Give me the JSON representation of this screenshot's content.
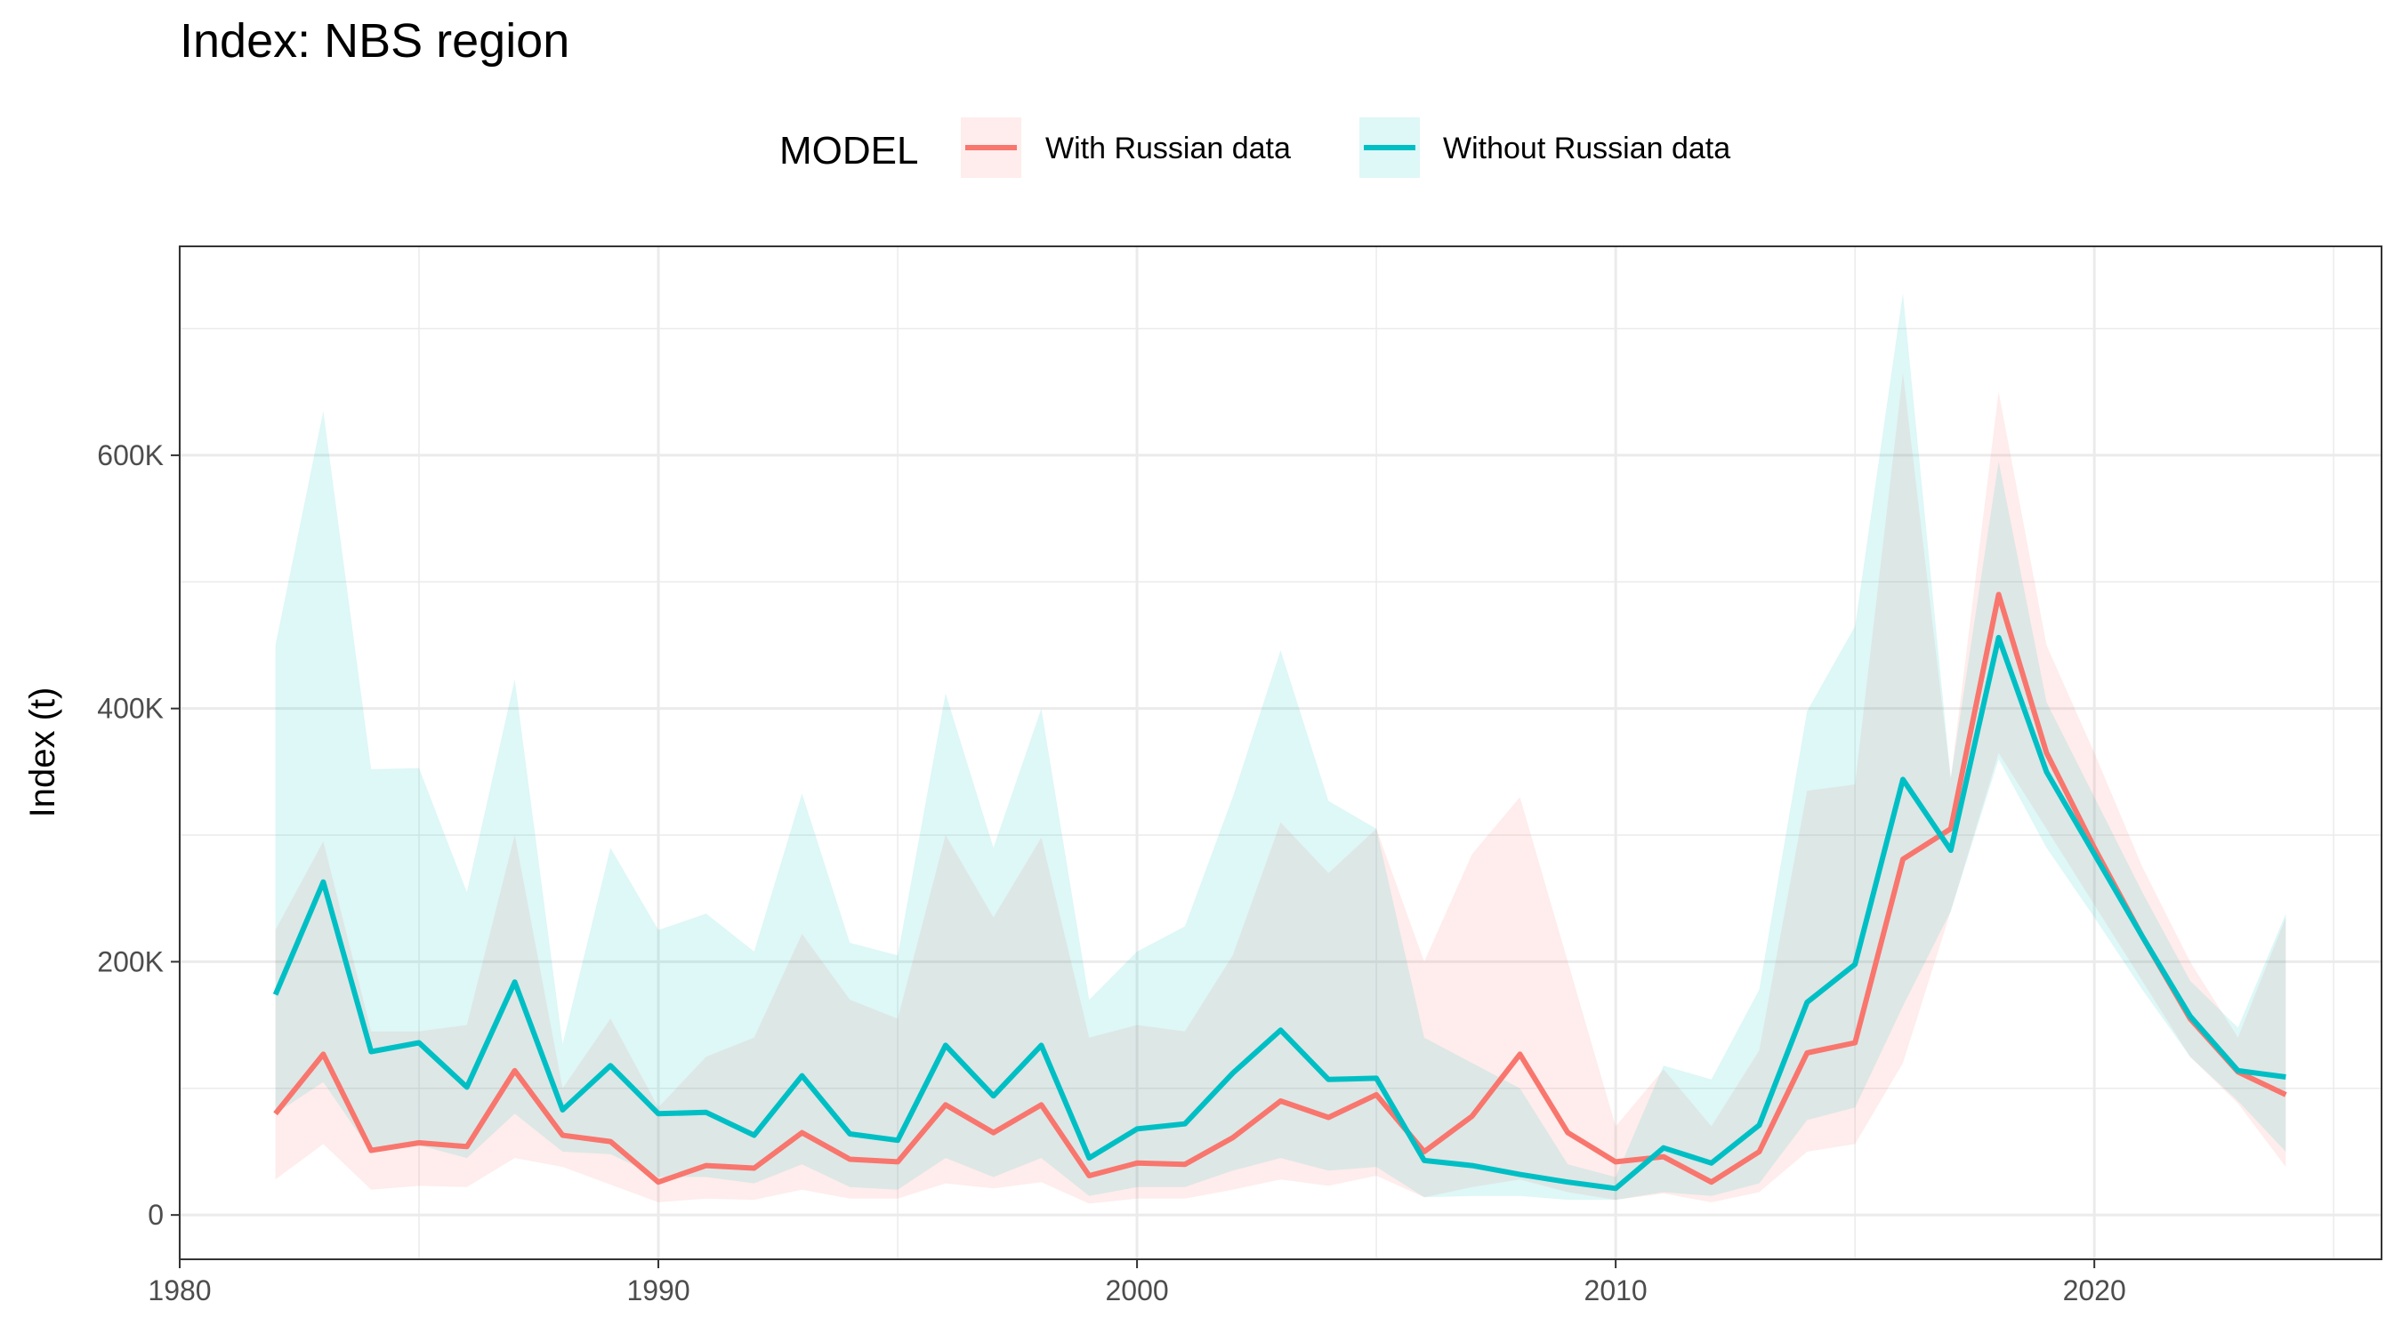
{
  "chart_data": {
    "type": "line",
    "title": "Index: NBS region",
    "xlabel": "",
    "ylabel": "Index (t)",
    "xlim": [
      1980,
      2026
    ],
    "ylim": [
      -35000,
      765000
    ],
    "x_ticks": [
      1980,
      1990,
      2000,
      2010,
      2020
    ],
    "x_tick_labels": [
      "1980",
      "1990",
      "2000",
      "2010",
      "2020"
    ],
    "y_ticks": [
      0,
      200000,
      400000,
      600000
    ],
    "y_tick_labels": [
      "0",
      "200K",
      "400K",
      "600K"
    ],
    "grid": true,
    "legend": {
      "title": "MODEL",
      "position": "top"
    },
    "series": [
      {
        "name": "With Russian data",
        "color": "#F8766D",
        "ribbon_color": "#F8766D",
        "x": [
          1982,
          1983,
          1984,
          1985,
          1986,
          1987,
          1988,
          1989,
          1990,
          1991,
          1992,
          1993,
          1994,
          1995,
          1996,
          1997,
          1998,
          1999,
          2000,
          2001,
          2002,
          2003,
          2004,
          2005,
          2006,
          2007,
          2008,
          2009,
          2010,
          2011,
          2012,
          2013,
          2014,
          2015,
          2016,
          2017,
          2018,
          2019,
          2020,
          2021,
          2022,
          2023,
          2024
        ],
        "values": [
          80000,
          127000,
          51000,
          57000,
          54000,
          114000,
          63000,
          58000,
          26000,
          39000,
          37000,
          65000,
          44000,
          42000,
          87000,
          65000,
          87000,
          31000,
          41000,
          40000,
          61000,
          90000,
          77000,
          95000,
          50000,
          78000,
          127000,
          65000,
          42000,
          46000,
          26000,
          50000,
          128000,
          136000,
          281000,
          305000,
          490000,
          365000,
          290000,
          220000,
          155000,
          113000,
          95000
        ],
        "lower": [
          28000,
          56000,
          20000,
          23000,
          22000,
          45000,
          38000,
          24000,
          10000,
          13000,
          12000,
          20000,
          13000,
          13000,
          25000,
          21000,
          26000,
          9000,
          13000,
          13000,
          20000,
          28000,
          23000,
          31000,
          14000,
          22000,
          28000,
          18000,
          12000,
          17000,
          10000,
          18000,
          50000,
          56000,
          120000,
          240000,
          365000,
          305000,
          245000,
          185000,
          125000,
          88000,
          38000
        ],
        "upper": [
          225000,
          295000,
          145000,
          145000,
          150000,
          300000,
          100000,
          155000,
          85000,
          125000,
          140000,
          222000,
          170000,
          155000,
          300000,
          235000,
          298000,
          140000,
          150000,
          145000,
          205000,
          310000,
          270000,
          305000,
          200000,
          285000,
          330000,
          200000,
          70000,
          115000,
          70000,
          130000,
          335000,
          340000,
          665000,
          345000,
          650000,
          450000,
          365000,
          275000,
          200000,
          140000,
          235000
        ]
      },
      {
        "name": "Without Russian data",
        "color": "#00BFC4",
        "ribbon_color": "#00BFC4",
        "x": [
          1982,
          1983,
          1984,
          1985,
          1986,
          1987,
          1988,
          1989,
          1990,
          1991,
          1992,
          1993,
          1994,
          1995,
          1996,
          1997,
          1998,
          1999,
          2000,
          2001,
          2002,
          2003,
          2004,
          2005,
          2006,
          2007,
          2008,
          2009,
          2010,
          2011,
          2012,
          2013,
          2014,
          2015,
          2016,
          2017,
          2018,
          2019,
          2020,
          2021,
          2022,
          2023,
          2024
        ],
        "values": [
          174000,
          263000,
          129000,
          136000,
          101000,
          184000,
          83000,
          118000,
          80000,
          81000,
          63000,
          110000,
          64000,
          59000,
          134000,
          94000,
          134000,
          45000,
          68000,
          72000,
          112000,
          146000,
          107000,
          108000,
          43000,
          39000,
          32000,
          26000,
          21000,
          53000,
          41000,
          71000,
          168000,
          198000,
          344000,
          288000,
          456000,
          350000,
          285000,
          220000,
          157000,
          114000,
          109000
        ],
        "lower": [
          80000,
          105000,
          50000,
          55000,
          45000,
          80000,
          50000,
          48000,
          30000,
          30000,
          25000,
          40000,
          22000,
          20000,
          45000,
          30000,
          45000,
          15000,
          22000,
          22000,
          35000,
          45000,
          35000,
          38000,
          14000,
          15000,
          15000,
          12000,
          12000,
          18000,
          15000,
          25000,
          75000,
          85000,
          165000,
          240000,
          360000,
          290000,
          235000,
          178000,
          125000,
          90000,
          50000
        ],
        "upper": [
          450000,
          635000,
          352000,
          353000,
          255000,
          423000,
          135000,
          290000,
          225000,
          238000,
          208000,
          333000,
          215000,
          205000,
          412000,
          290000,
          400000,
          170000,
          208000,
          228000,
          330000,
          446000,
          327000,
          305000,
          140000,
          120000,
          100000,
          40000,
          30000,
          118000,
          107000,
          178000,
          398000,
          465000,
          728000,
          345000,
          595000,
          405000,
          330000,
          255000,
          185000,
          148000,
          238000
        ]
      }
    ]
  }
}
